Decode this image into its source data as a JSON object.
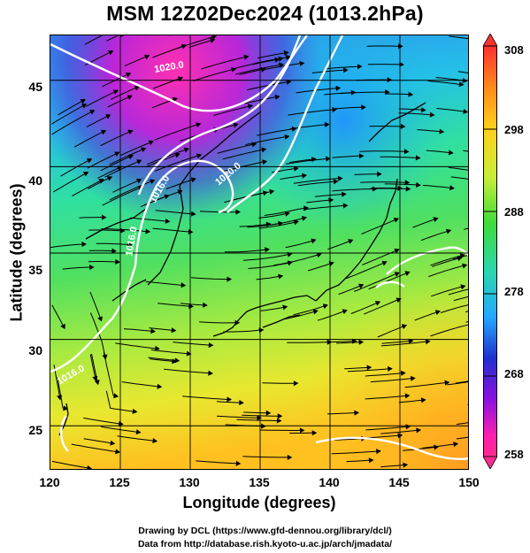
{
  "title": "MSM 12Z02Dec2024 (1013.2hPa)",
  "xaxis": {
    "label": "Longitude (degrees)",
    "ticks": [
      "120",
      "125",
      "130",
      "135",
      "140",
      "145",
      "150"
    ]
  },
  "yaxis": {
    "label": "Latitude  (degrees)",
    "ticks": [
      "25",
      "30",
      "35",
      "40",
      "45"
    ]
  },
  "colorbar": {
    "labels": [
      "308",
      "298",
      "288",
      "278",
      "268",
      "258"
    ],
    "colors": [
      "#ff3030",
      "#ff9a1a",
      "#ffd21a",
      "#b8ee3a",
      "#3ada3a",
      "#2ad6b0",
      "#24b8ff",
      "#2030d0",
      "#7a10e0",
      "#e010c0",
      "#ff2a90"
    ]
  },
  "map": {
    "lon_range": [
      120,
      150
    ],
    "lat_range": [
      22.4,
      47.6
    ],
    "grid_lon": [
      125,
      130,
      135,
      140,
      145
    ],
    "grid_lat": [
      25,
      30,
      35,
      40,
      45
    ],
    "contour_labels": [
      "1020.0",
      "1016.0",
      "1016.0",
      "1020.0",
      "1016.0"
    ]
  },
  "footer": {
    "line1": "Drawing by DCL (https://www.gfd-dennou.org/library/dcl/)",
    "line2": "Data from http://database.rish.kyoto-u.ac.jp/arch/jmadata/"
  }
}
